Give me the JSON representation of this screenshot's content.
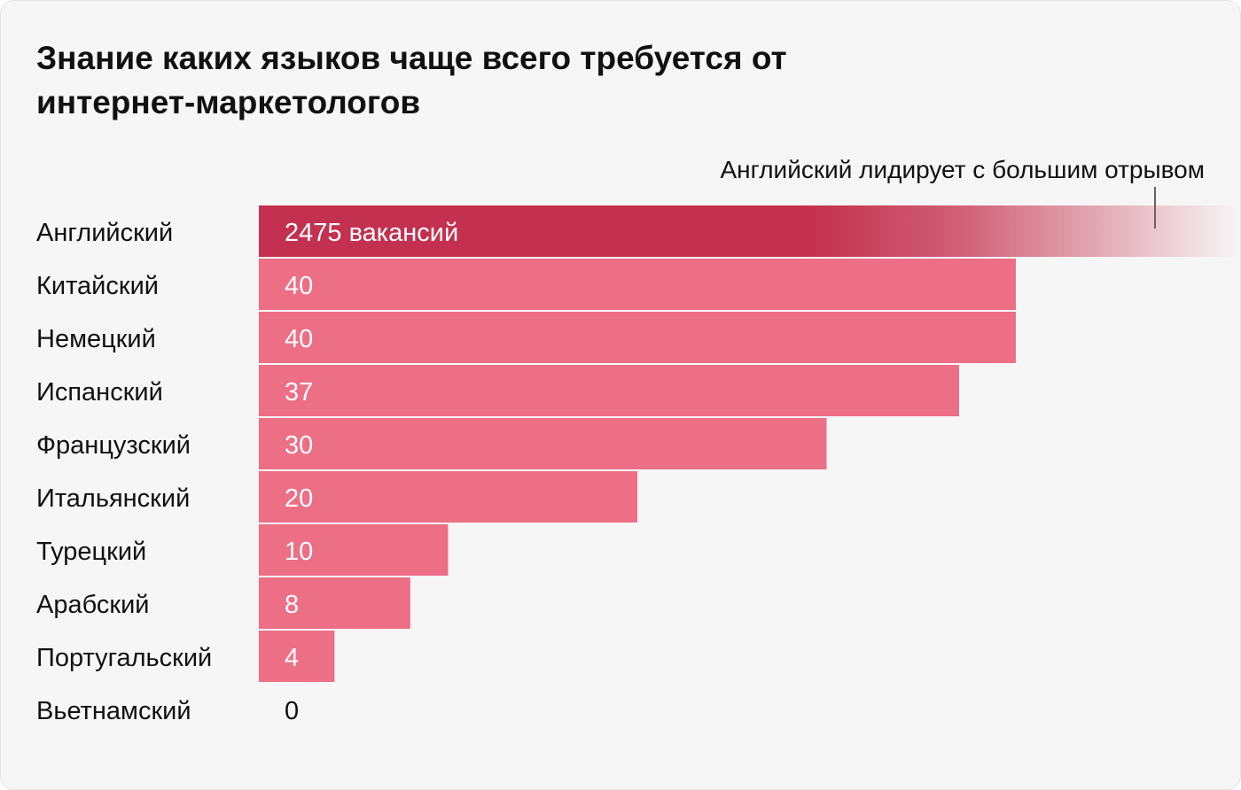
{
  "chart_data": {
    "type": "bar",
    "orientation": "horizontal",
    "title": "Знание каких языков чаще всего требуется от интернет-маркетологов",
    "annotation": "Английский лидирует с большим отрывом",
    "categories": [
      "Английский",
      "Китайский",
      "Немецкий",
      "Испанский",
      "Французский",
      "Итальянский",
      "Турецкий",
      "Арабский",
      "Португальский",
      "Вьетнамский"
    ],
    "values": [
      2475,
      40,
      40,
      37,
      30,
      20,
      10,
      8,
      4,
      0
    ],
    "value_labels": [
      "2475 вакансий",
      "40",
      "40",
      "37",
      "30",
      "20",
      "10",
      "8",
      "4",
      "0"
    ],
    "axis_break": "English bar truncated with fade-out",
    "colors": {
      "highlight": "#c4304f",
      "bar": "#ec6f86",
      "text_on_bar": "#ffffff",
      "text": "#111111"
    }
  }
}
